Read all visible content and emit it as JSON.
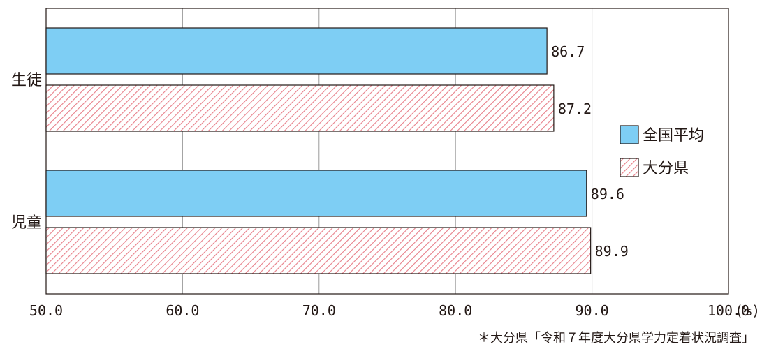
{
  "chart_data": {
    "type": "bar",
    "orientation": "horizontal",
    "categories": [
      "生徒",
      "児童"
    ],
    "series": [
      {
        "name": "全国平均",
        "values": [
          86.7,
          89.6
        ],
        "color": "#7ecef4",
        "pattern": "solid"
      },
      {
        "name": "大分県",
        "values": [
          87.2,
          89.9
        ],
        "color": "#e8808a",
        "pattern": "diagonal-hatch"
      }
    ],
    "xlim": [
      50.0,
      100.0
    ],
    "xticks": [
      "50.0",
      "60.0",
      "70.0",
      "80.0",
      "90.0",
      "100.0"
    ],
    "x_unit": "(%)",
    "grid": true,
    "legend_position": "right"
  },
  "source_note": "＊大分県「令和７年度大分県学力定着状況調査」"
}
